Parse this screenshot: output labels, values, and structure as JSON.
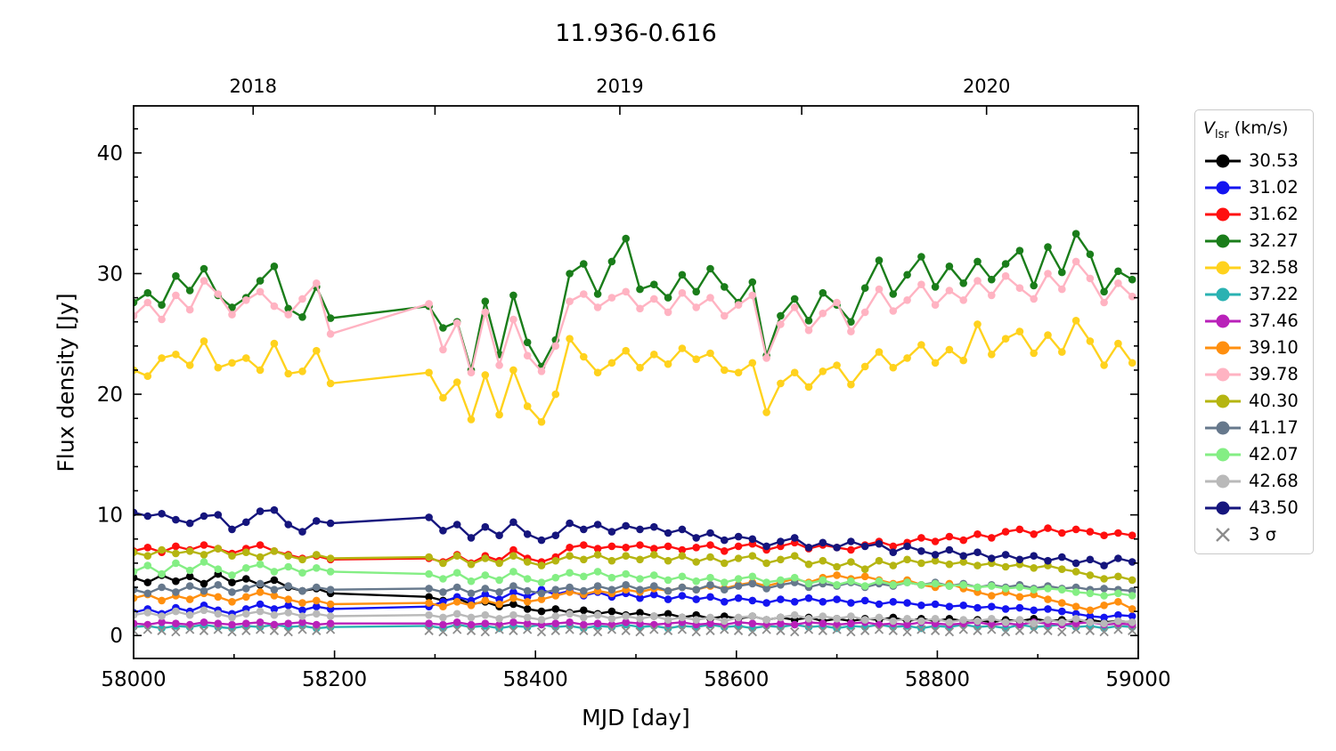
{
  "title": "11.936-0.616",
  "axes": {
    "xlabel": "MJD [day]",
    "ylabel": "Flux density [Jy]",
    "xlim": [
      58000,
      59000
    ],
    "ylim": [
      -1.9,
      43.9
    ],
    "x_major_ticks": [
      58000,
      58200,
      58400,
      58600,
      58800,
      59000
    ],
    "x_minor_ticks": [
      58100,
      58300,
      58500,
      58700,
      58900
    ],
    "y_major_ticks": [
      0,
      10,
      20,
      30,
      40
    ],
    "y_minor_step": 2,
    "top_axis": {
      "ticks_mjd": [
        58119,
        58300,
        58484,
        58665,
        58849
      ],
      "year_labels": [
        {
          "mjd": 58119,
          "label": "2018"
        },
        {
          "mjd": 58484,
          "label": "2019"
        },
        {
          "mjd": 58849,
          "label": "2020"
        }
      ]
    }
  },
  "legend": {
    "title": {
      "symbol": "V",
      "subscript": "lsr",
      "units": " (km/s)"
    }
  },
  "chart_data": {
    "type": "line",
    "x0": 58000,
    "dx": 14,
    "n": 72,
    "xlabel": "MJD [day]",
    "ylabel": "Flux density [Jy]",
    "series": [
      {
        "name": "30.53",
        "color": "#000000",
        "values": [
          4.8,
          4.4,
          5.0,
          4.5,
          4.9,
          4.3,
          5.1,
          4.4,
          4.7,
          4.2,
          4.6,
          4.0,
          3.7,
          3.9,
          3.5,
          null,
          null,
          null,
          null,
          null,
          null,
          3.2,
          2.9,
          3.1,
          2.6,
          2.8,
          2.4,
          2.6,
          2.2,
          2.0,
          2.2,
          1.9,
          2.1,
          1.8,
          2.0,
          1.7,
          1.9,
          1.6,
          1.8,
          1.5,
          1.7,
          1.4,
          1.6,
          1.4,
          1.6,
          1.3,
          1.5,
          1.3,
          1.5,
          1.2,
          1.4,
          1.2,
          1.4,
          1.3,
          1.5,
          1.2,
          1.4,
          1.2,
          1.4,
          1.2,
          1.3,
          1.1,
          1.3,
          1.2,
          1.4,
          1.2,
          1.3,
          1.1,
          1.3,
          1.1,
          1.2,
          1.1
        ]
      },
      {
        "name": "31.02",
        "color": "#1414f0",
        "values": [
          1.9,
          2.2,
          1.8,
          2.3,
          2.0,
          2.5,
          2.1,
          1.8,
          2.2,
          2.6,
          2.2,
          2.5,
          2.1,
          2.4,
          2.2,
          null,
          null,
          null,
          null,
          null,
          null,
          2.4,
          2.8,
          3.2,
          2.9,
          3.4,
          3.0,
          3.6,
          3.2,
          3.8,
          3.4,
          3.7,
          3.3,
          3.6,
          3.2,
          3.5,
          3.1,
          3.4,
          3.0,
          3.3,
          3.0,
          3.2,
          2.8,
          3.1,
          2.9,
          2.7,
          3.0,
          2.8,
          3.1,
          2.8,
          3.0,
          2.7,
          2.9,
          2.6,
          2.8,
          2.7,
          2.5,
          2.6,
          2.4,
          2.5,
          2.3,
          2.4,
          2.2,
          2.3,
          2.1,
          2.2,
          2.0,
          1.8,
          1.6,
          1.5,
          1.7,
          1.6
        ]
      },
      {
        "name": "31.62",
        "color": "#ff0f0f",
        "values": [
          7.0,
          7.3,
          6.9,
          7.4,
          7.1,
          7.5,
          7.2,
          6.8,
          7.2,
          7.5,
          7.0,
          6.7,
          6.4,
          6.6,
          6.3,
          null,
          null,
          null,
          null,
          null,
          null,
          6.4,
          6.1,
          6.7,
          6.0,
          6.6,
          6.2,
          7.1,
          6.4,
          6.1,
          6.5,
          7.3,
          7.5,
          7.2,
          7.4,
          7.3,
          7.5,
          7.2,
          7.4,
          7.1,
          7.3,
          7.5,
          7.0,
          7.4,
          7.6,
          7.1,
          7.4,
          7.7,
          7.2,
          7.5,
          7.3,
          7.1,
          7.5,
          7.8,
          7.4,
          7.7,
          8.1,
          7.8,
          8.2,
          7.9,
          8.4,
          8.1,
          8.6,
          8.8,
          8.4,
          8.9,
          8.5,
          8.8,
          8.6,
          8.3,
          8.5,
          8.3
        ]
      },
      {
        "name": "32.27",
        "color": "#1a7d1a",
        "values": [
          27.6,
          28.4,
          27.4,
          29.8,
          28.6,
          30.4,
          28.2,
          27.2,
          28.0,
          29.4,
          30.6,
          27.1,
          26.4,
          28.9,
          26.3,
          null,
          null,
          null,
          null,
          null,
          null,
          27.3,
          25.5,
          26.0,
          22.0,
          27.7,
          23.3,
          28.2,
          24.3,
          22.3,
          24.5,
          30.0,
          30.8,
          28.3,
          31.0,
          32.9,
          28.7,
          29.1,
          28.0,
          29.9,
          28.5,
          30.4,
          28.9,
          27.6,
          29.3,
          23.2,
          26.5,
          27.9,
          26.1,
          28.4,
          27.4,
          26.0,
          28.8,
          31.1,
          28.3,
          29.9,
          31.4,
          28.9,
          30.6,
          29.2,
          31.0,
          29.5,
          30.8,
          31.9,
          29.0,
          32.2,
          30.1,
          33.3,
          31.6,
          28.5,
          30.2,
          29.5
        ]
      },
      {
        "name": "32.58",
        "color": "#ffd21d",
        "values": [
          22.0,
          21.5,
          23.0,
          23.3,
          22.4,
          24.4,
          22.2,
          22.6,
          23.0,
          22.0,
          24.2,
          21.7,
          21.9,
          23.6,
          20.9,
          null,
          null,
          null,
          null,
          null,
          null,
          21.8,
          19.7,
          21.0,
          17.9,
          21.6,
          18.3,
          22.0,
          19.0,
          17.7,
          20.0,
          24.6,
          23.1,
          21.8,
          22.6,
          23.6,
          22.2,
          23.3,
          22.5,
          23.8,
          22.9,
          23.4,
          22.0,
          21.8,
          22.6,
          18.5,
          20.9,
          21.8,
          20.6,
          21.9,
          22.4,
          20.8,
          22.3,
          23.5,
          22.2,
          23.0,
          24.1,
          22.6,
          23.7,
          22.8,
          25.8,
          23.3,
          24.6,
          25.2,
          23.4,
          24.9,
          23.5,
          26.1,
          24.4,
          22.4,
          24.2,
          22.6
        ]
      },
      {
        "name": "37.22",
        "color": "#2ab2b2",
        "values": [
          0.7,
          0.8,
          0.6,
          0.8,
          0.7,
          0.9,
          0.7,
          0.6,
          0.8,
          0.7,
          0.9,
          0.7,
          0.8,
          0.6,
          0.7,
          null,
          null,
          null,
          null,
          null,
          null,
          0.8,
          0.6,
          0.9,
          0.7,
          0.8,
          0.6,
          0.8,
          0.7,
          0.9,
          0.7,
          0.8,
          0.6,
          0.8,
          0.7,
          0.9,
          0.7,
          0.8,
          0.6,
          0.8,
          0.7,
          0.9,
          0.7,
          0.8,
          0.6,
          0.8,
          0.7,
          0.9,
          0.7,
          0.8,
          0.6,
          0.8,
          0.7,
          0.9,
          0.7,
          0.8,
          0.6,
          0.8,
          0.7,
          0.9,
          0.7,
          0.8,
          0.6,
          0.9,
          0.7,
          0.8,
          0.9,
          0.7,
          0.8,
          0.6,
          0.8,
          0.7
        ]
      },
      {
        "name": "37.46",
        "color": "#b921b9",
        "values": [
          1.0,
          0.9,
          1.1,
          1.0,
          0.9,
          1.1,
          1.0,
          0.9,
          1.0,
          1.1,
          0.9,
          1.0,
          1.1,
          0.9,
          1.0,
          null,
          null,
          null,
          null,
          null,
          null,
          1.0,
          0.9,
          1.1,
          0.9,
          1.0,
          0.9,
          1.1,
          1.0,
          0.9,
          1.0,
          1.1,
          0.9,
          1.0,
          0.9,
          1.1,
          1.0,
          0.9,
          1.0,
          1.1,
          0.9,
          1.0,
          0.9,
          1.1,
          1.0,
          0.9,
          1.0,
          0.9,
          1.1,
          1.0,
          0.9,
          1.0,
          1.1,
          0.9,
          1.0,
          0.9,
          1.1,
          1.0,
          0.9,
          1.0,
          1.1,
          0.9,
          1.0,
          0.9,
          1.1,
          1.0,
          0.9,
          1.0,
          1.1,
          0.9,
          1.0,
          0.9
        ]
      },
      {
        "name": "39.10",
        "color": "#ff8f0f",
        "values": [
          3.1,
          3.4,
          2.9,
          3.3,
          3.0,
          3.5,
          3.2,
          2.8,
          3.2,
          3.6,
          3.3,
          3.0,
          2.7,
          2.9,
          2.6,
          null,
          null,
          null,
          null,
          null,
          null,
          2.7,
          2.4,
          2.8,
          2.5,
          2.9,
          2.6,
          3.1,
          2.8,
          3.0,
          3.3,
          3.6,
          3.4,
          3.7,
          3.5,
          3.8,
          3.6,
          3.9,
          3.7,
          4.0,
          3.8,
          4.1,
          3.9,
          4.2,
          4.4,
          4.1,
          4.4,
          4.7,
          4.4,
          4.8,
          5.0,
          4.7,
          4.9,
          4.6,
          4.3,
          4.6,
          4.2,
          4.0,
          4.3,
          3.9,
          3.6,
          3.3,
          3.6,
          3.2,
          3.4,
          3.0,
          2.7,
          2.4,
          2.1,
          2.5,
          2.8,
          2.2
        ]
      },
      {
        "name": "39.78",
        "color": "#ffb3c2",
        "values": [
          26.5,
          27.6,
          26.2,
          28.2,
          27.0,
          29.4,
          28.3,
          26.6,
          27.8,
          28.5,
          27.3,
          26.6,
          27.9,
          29.2,
          25.0,
          null,
          null,
          null,
          null,
          null,
          null,
          27.5,
          23.7,
          25.9,
          21.8,
          26.8,
          22.4,
          26.2,
          23.2,
          21.9,
          24.0,
          27.7,
          28.3,
          27.2,
          28.0,
          28.5,
          27.1,
          27.9,
          26.8,
          28.4,
          27.2,
          28.0,
          26.5,
          27.4,
          28.2,
          23.0,
          25.8,
          27.2,
          25.3,
          26.7,
          27.6,
          25.2,
          26.8,
          28.7,
          26.9,
          27.8,
          29.1,
          27.4,
          28.6,
          27.8,
          29.4,
          28.2,
          29.8,
          28.8,
          27.9,
          30.0,
          28.7,
          31.0,
          29.6,
          27.6,
          29.2,
          28.1
        ]
      },
      {
        "name": "40.30",
        "color": "#b5b511",
        "values": [
          6.9,
          6.6,
          7.1,
          6.8,
          7.0,
          6.7,
          7.2,
          6.6,
          6.9,
          6.5,
          7.0,
          6.6,
          6.3,
          6.7,
          6.4,
          null,
          null,
          null,
          null,
          null,
          null,
          6.5,
          6.0,
          6.6,
          5.9,
          6.4,
          6.0,
          6.6,
          6.1,
          5.8,
          6.2,
          6.6,
          6.3,
          6.7,
          6.2,
          6.6,
          6.3,
          6.7,
          6.2,
          6.6,
          6.1,
          6.5,
          6.0,
          6.4,
          6.6,
          6.0,
          6.3,
          6.6,
          5.9,
          6.2,
          5.7,
          6.1,
          5.5,
          6.2,
          5.8,
          6.3,
          6.0,
          6.2,
          5.9,
          6.1,
          5.8,
          6.0,
          5.7,
          5.9,
          5.6,
          5.8,
          5.5,
          5.3,
          5.0,
          4.7,
          4.9,
          4.6
        ]
      },
      {
        "name": "41.17",
        "color": "#66788c",
        "values": [
          3.8,
          3.5,
          4.0,
          3.6,
          4.1,
          3.7,
          4.2,
          3.6,
          3.9,
          4.3,
          3.8,
          4.1,
          3.7,
          4.0,
          3.8,
          null,
          null,
          null,
          null,
          null,
          null,
          3.9,
          3.6,
          4.0,
          3.5,
          3.9,
          3.6,
          4.1,
          3.7,
          3.5,
          3.8,
          4.0,
          3.7,
          4.1,
          3.8,
          4.2,
          3.8,
          4.1,
          3.7,
          4.0,
          3.8,
          4.2,
          3.8,
          4.1,
          4.3,
          3.9,
          4.2,
          4.4,
          4.0,
          4.3,
          4.1,
          4.4,
          4.0,
          4.3,
          4.1,
          4.4,
          4.2,
          4.4,
          4.1,
          4.3,
          4.0,
          4.2,
          4.0,
          4.2,
          3.9,
          4.1,
          3.9,
          4.0,
          3.8,
          3.9,
          3.8,
          3.7
        ]
      },
      {
        "name": "42.07",
        "color": "#84ee84",
        "values": [
          5.3,
          5.8,
          5.1,
          6.0,
          5.4,
          6.1,
          5.5,
          5.0,
          5.6,
          5.9,
          5.3,
          5.7,
          5.2,
          5.6,
          5.3,
          null,
          null,
          null,
          null,
          null,
          null,
          5.1,
          4.7,
          5.2,
          4.5,
          5.0,
          4.6,
          5.3,
          4.7,
          4.4,
          4.8,
          5.2,
          4.9,
          5.3,
          4.8,
          5.1,
          4.7,
          5.0,
          4.6,
          4.9,
          4.5,
          4.8,
          4.4,
          4.7,
          4.9,
          4.4,
          4.6,
          4.8,
          4.3,
          4.6,
          4.2,
          4.5,
          4.1,
          4.5,
          4.2,
          4.4,
          4.2,
          4.3,
          4.1,
          4.2,
          4.0,
          4.1,
          3.9,
          4.0,
          3.8,
          3.9,
          3.8,
          3.6,
          3.5,
          3.3,
          3.5,
          3.3
        ]
      },
      {
        "name": "42.68",
        "color": "#b9b9b9",
        "values": [
          1.7,
          1.9,
          1.6,
          2.0,
          1.7,
          2.1,
          1.8,
          1.5,
          1.8,
          2.0,
          1.7,
          1.9,
          1.6,
          1.8,
          1.6,
          null,
          null,
          null,
          null,
          null,
          null,
          1.7,
          1.5,
          1.8,
          1.5,
          1.7,
          1.4,
          1.7,
          1.5,
          1.3,
          1.6,
          1.8,
          1.5,
          1.7,
          1.4,
          1.6,
          1.4,
          1.6,
          1.3,
          1.5,
          1.3,
          1.5,
          1.2,
          1.5,
          1.6,
          1.3,
          1.5,
          1.7,
          1.4,
          1.6,
          1.4,
          1.6,
          1.3,
          1.5,
          1.2,
          1.4,
          1.2,
          1.4,
          1.1,
          1.3,
          1.2,
          1.4,
          1.1,
          1.3,
          1.0,
          1.3,
          1.1,
          1.4,
          1.1,
          1.0,
          1.2,
          1.1
        ]
      },
      {
        "name": "43.50",
        "color": "#15157d",
        "values": [
          10.2,
          9.9,
          10.1,
          9.6,
          9.3,
          9.9,
          10.0,
          8.8,
          9.4,
          10.3,
          10.4,
          9.2,
          8.6,
          9.5,
          9.3,
          null,
          null,
          null,
          null,
          null,
          null,
          9.8,
          8.7,
          9.2,
          8.1,
          9.0,
          8.3,
          9.4,
          8.4,
          7.9,
          8.3,
          9.3,
          8.8,
          9.2,
          8.6,
          9.1,
          8.8,
          9.0,
          8.5,
          8.8,
          8.1,
          8.5,
          7.9,
          8.2,
          8.0,
          7.4,
          7.8,
          8.1,
          7.3,
          7.7,
          7.3,
          7.8,
          7.4,
          7.6,
          6.9,
          7.4,
          7.0,
          6.7,
          7.1,
          6.6,
          6.9,
          6.4,
          6.7,
          6.3,
          6.6,
          6.2,
          6.5,
          6.0,
          6.3,
          5.8,
          6.4,
          6.1
        ]
      }
    ],
    "sigma3": {
      "name": "3 σ",
      "color": "#8c8c8c",
      "values": [
        0.4,
        0.5,
        0.4,
        0.3,
        0.5,
        0.4,
        0.5,
        0.3,
        0.4,
        0.5,
        0.4,
        0.3,
        0.5,
        0.4,
        0.5,
        null,
        null,
        null,
        null,
        null,
        null,
        0.4,
        0.3,
        0.5,
        0.4,
        0.3,
        0.5,
        0.4,
        0.5,
        0.3,
        0.4,
        0.5,
        0.4,
        0.3,
        0.5,
        0.4,
        0.3,
        0.5,
        0.4,
        0.5,
        0.3,
        0.4,
        0.5,
        0.4,
        0.3,
        0.5,
        0.4,
        0.3,
        0.5,
        0.4,
        0.5,
        0.3,
        0.4,
        0.5,
        0.4,
        0.3,
        0.5,
        0.4,
        0.3,
        0.5,
        0.4,
        0.5,
        0.3,
        0.4,
        0.5,
        0.4,
        0.3,
        0.5,
        0.4,
        0.3,
        0.5,
        0.4
      ]
    }
  }
}
